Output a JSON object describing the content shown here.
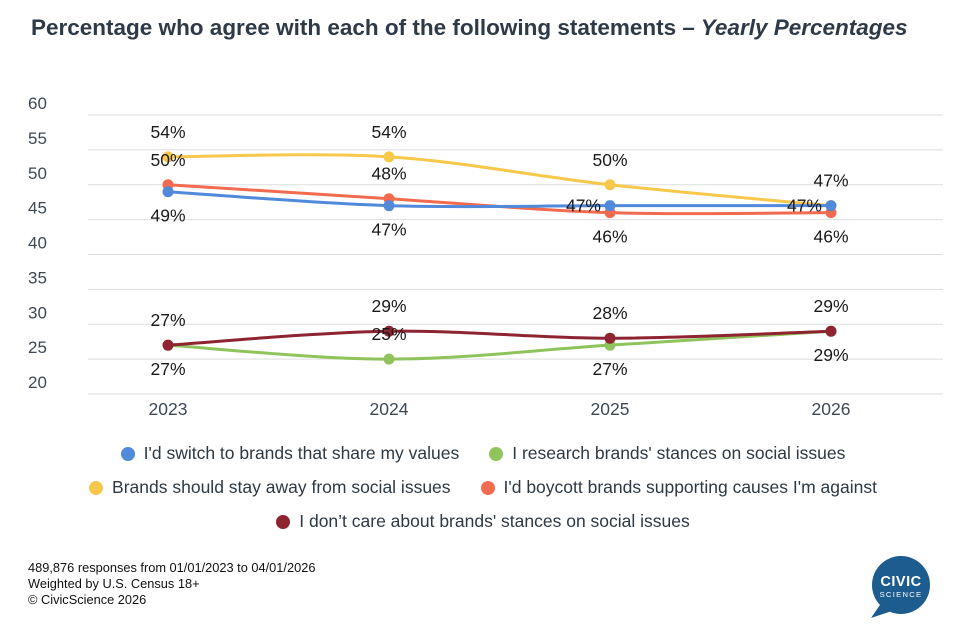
{
  "title": {
    "text": "Percentage who agree with each of the following statements ",
    "emphasis": "– Yearly Percentages"
  },
  "chart_data": {
    "type": "line",
    "x_categories": [
      "2023",
      "2024",
      "2025",
      "2026"
    ],
    "y_ticks": [
      60,
      55,
      50,
      45,
      40,
      35,
      30,
      25,
      20
    ],
    "y_range": [
      20,
      60
    ],
    "grid": true,
    "legend_position": "bottom",
    "series": [
      {
        "name": "I'd switch to brands that share my values",
        "color": "#5189DB",
        "values": [
          49,
          47,
          47,
          47
        ],
        "labels": [
          "49%",
          "47%",
          "47%",
          "47%"
        ],
        "label_pos": [
          "below",
          "below",
          "left",
          "left"
        ]
      },
      {
        "name": "I research brands' stances on social issues",
        "color": "#8FC35B",
        "values": [
          27,
          25,
          27,
          29
        ],
        "labels": [
          "27%",
          "25%",
          "27%",
          "29%"
        ],
        "label_pos": [
          "below",
          "above",
          "below",
          "below"
        ]
      },
      {
        "name": "Brands should stay away from social issues",
        "color": "#F8C84B",
        "values": [
          54,
          54,
          50,
          47
        ],
        "labels": [
          "54%",
          "54%",
          "50%",
          "47%"
        ],
        "label_pos": [
          "above",
          "above",
          "above",
          "above"
        ]
      },
      {
        "name": "I'd boycott brands supporting causes I'm against",
        "color": "#F26B4F",
        "values": [
          50,
          48,
          46,
          46
        ],
        "labels": [
          "50%",
          "48%",
          "46%",
          "46%"
        ],
        "label_pos": [
          "above",
          "above",
          "below",
          "below"
        ]
      },
      {
        "name": "I don’t care about brands' stances on social issues",
        "color": "#8E2432",
        "values": [
          27,
          29,
          28,
          29
        ],
        "labels": [
          "27%",
          "29%",
          "28%",
          "29%"
        ],
        "label_pos": [
          "above",
          "above",
          "above",
          "above"
        ]
      }
    ]
  },
  "footer": {
    "lines": [
      "489,876 responses from 01/01/2023 to 04/01/2026",
      "Weighted by U.S. Census 18+",
      "© CivicScience 2026"
    ]
  },
  "logo": {
    "line1": "CIVIC",
    "line2": "SCIENCE",
    "color": "#1D5C8E"
  }
}
